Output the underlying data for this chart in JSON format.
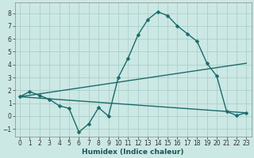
{
  "xlabel": "Humidex (Indice chaleur)",
  "xlim": [
    -0.5,
    23.5
  ],
  "ylim": [
    -1.6,
    8.8
  ],
  "yticks": [
    -1,
    0,
    1,
    2,
    3,
    4,
    5,
    6,
    7,
    8
  ],
  "xticks": [
    0,
    1,
    2,
    3,
    4,
    5,
    6,
    7,
    8,
    9,
    10,
    11,
    12,
    13,
    14,
    15,
    16,
    17,
    18,
    19,
    20,
    21,
    22,
    23
  ],
  "bg_color": "#cce8e4",
  "grid_color": "#aacfcb",
  "line_color": "#1a6b6b",
  "line1_x": [
    0,
    1,
    2,
    3,
    4,
    5,
    6,
    7,
    8,
    9,
    10,
    11,
    12,
    13,
    14,
    15,
    16,
    17,
    18,
    19,
    20,
    21,
    22,
    23
  ],
  "line1_y": [
    1.5,
    1.9,
    1.6,
    1.3,
    0.8,
    0.6,
    -1.25,
    -0.6,
    0.65,
    0.0,
    3.0,
    4.5,
    6.3,
    7.5,
    8.1,
    7.8,
    7.0,
    6.4,
    5.8,
    4.1,
    3.1,
    0.35,
    0.05,
    0.25
  ],
  "line2_x": [
    0,
    23
  ],
  "line2_y": [
    1.5,
    4.1
  ],
  "line3_x": [
    0,
    23
  ],
  "line3_y": [
    1.5,
    0.25
  ],
  "markersize": 2.5,
  "linewidth": 1.0
}
